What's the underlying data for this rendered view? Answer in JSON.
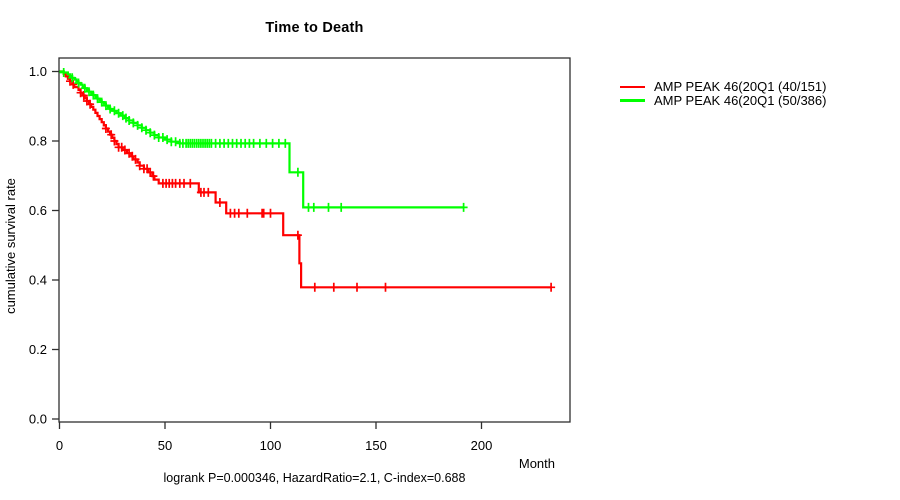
{
  "title": "Time to Death",
  "x_axis": {
    "label": "Month",
    "tick_labels": [
      "0",
      "50",
      "100",
      "150",
      "200"
    ],
    "tick_values": [
      0,
      50,
      100,
      150,
      200
    ]
  },
  "y_axis": {
    "label": "cumulative survival rate",
    "tick_labels": [
      "0.0",
      "0.2",
      "0.4",
      "0.6",
      "0.8",
      "1.0"
    ],
    "tick_values": [
      0,
      0.2,
      0.4,
      0.6,
      0.8,
      1.0
    ]
  },
  "legend": {
    "items": [
      {
        "label": "AMP PEAK 46(20Q1 (40/151)",
        "color": "#ff0000"
      },
      {
        "label": "AMP PEAK 46(20Q1 (50/386)",
        "color": "#00ff00"
      }
    ]
  },
  "footer": {
    "stats_label": "logrank P=0.000346, HazardRatio=2.1, C-index=0.688"
  },
  "colors": {
    "axis": "#2f2f2f",
    "text": "#000000",
    "background": "#ffffff"
  },
  "chart_data": {
    "type": "line",
    "variant": "kaplan_meier_step",
    "title": "Time to Death",
    "xlabel": "Month",
    "ylabel": "cumulative survival rate",
    "xlim": [
      0,
      243
    ],
    "ylim": [
      0,
      1.04
    ],
    "grid": false,
    "legend_position": "right-outside",
    "series": [
      {
        "name": "AMP PEAK 46(20Q1 (40/151)",
        "color": "#ff0000",
        "end_month": 233,
        "steps": [
          [
            0,
            1.0
          ],
          [
            2,
            0.993
          ],
          [
            3,
            0.986
          ],
          [
            4,
            0.979
          ],
          [
            5,
            0.972
          ],
          [
            6,
            0.963
          ],
          [
            7,
            0.955
          ],
          [
            9,
            0.947
          ],
          [
            10,
            0.939
          ],
          [
            11,
            0.931
          ],
          [
            12,
            0.923
          ],
          [
            13,
            0.915
          ],
          [
            14,
            0.906
          ],
          [
            15,
            0.898
          ],
          [
            16,
            0.89
          ],
          [
            17,
            0.881
          ],
          [
            18,
            0.872
          ],
          [
            19,
            0.863
          ],
          [
            20,
            0.854
          ],
          [
            21,
            0.845
          ],
          [
            22,
            0.836
          ],
          [
            23,
            0.827
          ],
          [
            24,
            0.818
          ],
          [
            25,
            0.809
          ],
          [
            26,
            0.8
          ],
          [
            27,
            0.791
          ],
          [
            28,
            0.782
          ],
          [
            30,
            0.774
          ],
          [
            32,
            0.765
          ],
          [
            34,
            0.756
          ],
          [
            35,
            0.747
          ],
          [
            37,
            0.738
          ],
          [
            38,
            0.729
          ],
          [
            40,
            0.72
          ],
          [
            42,
            0.71
          ],
          [
            44,
            0.699
          ],
          [
            45,
            0.689
          ],
          [
            47,
            0.678
          ],
          [
            66,
            0.652
          ],
          [
            74,
            0.623
          ],
          [
            79,
            0.592
          ],
          [
            106,
            0.529
          ],
          [
            113.7,
            0.448
          ],
          [
            114.5,
            0.379
          ]
        ],
        "censor_months": [
          5,
          6.5,
          10,
          11.5,
          13,
          14.5,
          22,
          24.5,
          26,
          28,
          29.5,
          31,
          33,
          34.5,
          36,
          38,
          40,
          41.5,
          43,
          44.5,
          49,
          50.5,
          52,
          53.5,
          55,
          57,
          59,
          62,
          67,
          68.5,
          70.5,
          76,
          81,
          83,
          85,
          89,
          96,
          96.8,
          100,
          113,
          121,
          130,
          141,
          154.5,
          233
        ]
      },
      {
        "name": "AMP PEAK 46(20Q1 (50/386)",
        "color": "#00ff00",
        "end_month": 191.5,
        "steps": [
          [
            0,
            1.0
          ],
          [
            2,
            0.997
          ],
          [
            4,
            0.992
          ],
          [
            5,
            0.987
          ],
          [
            6,
            0.982
          ],
          [
            7,
            0.977
          ],
          [
            8,
            0.972
          ],
          [
            9,
            0.967
          ],
          [
            10,
            0.962
          ],
          [
            11,
            0.957
          ],
          [
            12,
            0.952
          ],
          [
            13,
            0.947
          ],
          [
            14,
            0.942
          ],
          [
            15,
            0.937
          ],
          [
            16,
            0.932
          ],
          [
            17,
            0.927
          ],
          [
            18,
            0.922
          ],
          [
            19,
            0.917
          ],
          [
            20,
            0.912
          ],
          [
            21,
            0.907
          ],
          [
            22,
            0.902
          ],
          [
            23,
            0.897
          ],
          [
            24,
            0.892
          ],
          [
            25,
            0.887
          ],
          [
            27,
            0.88
          ],
          [
            29,
            0.873
          ],
          [
            31,
            0.866
          ],
          [
            33,
            0.859
          ],
          [
            35,
            0.852
          ],
          [
            37,
            0.845
          ],
          [
            39,
            0.838
          ],
          [
            41,
            0.831
          ],
          [
            43,
            0.824
          ],
          [
            45,
            0.817
          ],
          [
            47,
            0.81
          ],
          [
            50,
            0.804
          ],
          [
            53,
            0.798
          ],
          [
            57,
            0.793
          ],
          [
            109,
            0.71
          ],
          [
            115.5,
            0.609
          ]
        ],
        "censor_months": [
          2,
          6,
          9,
          12,
          14,
          16,
          18,
          20,
          22,
          24,
          26,
          28,
          30,
          31.5,
          33,
          35,
          37,
          39,
          41,
          43,
          45,
          47,
          49,
          51,
          53,
          55,
          57,
          58.5,
          60,
          61,
          62,
          63,
          64,
          65,
          66,
          67,
          68,
          69,
          70,
          71,
          72,
          74,
          76,
          78,
          80,
          82,
          84,
          86,
          88,
          90,
          92,
          95,
          98,
          101,
          104,
          107,
          113,
          118,
          120.5,
          127.5,
          133.5,
          191.5
        ]
      }
    ]
  }
}
